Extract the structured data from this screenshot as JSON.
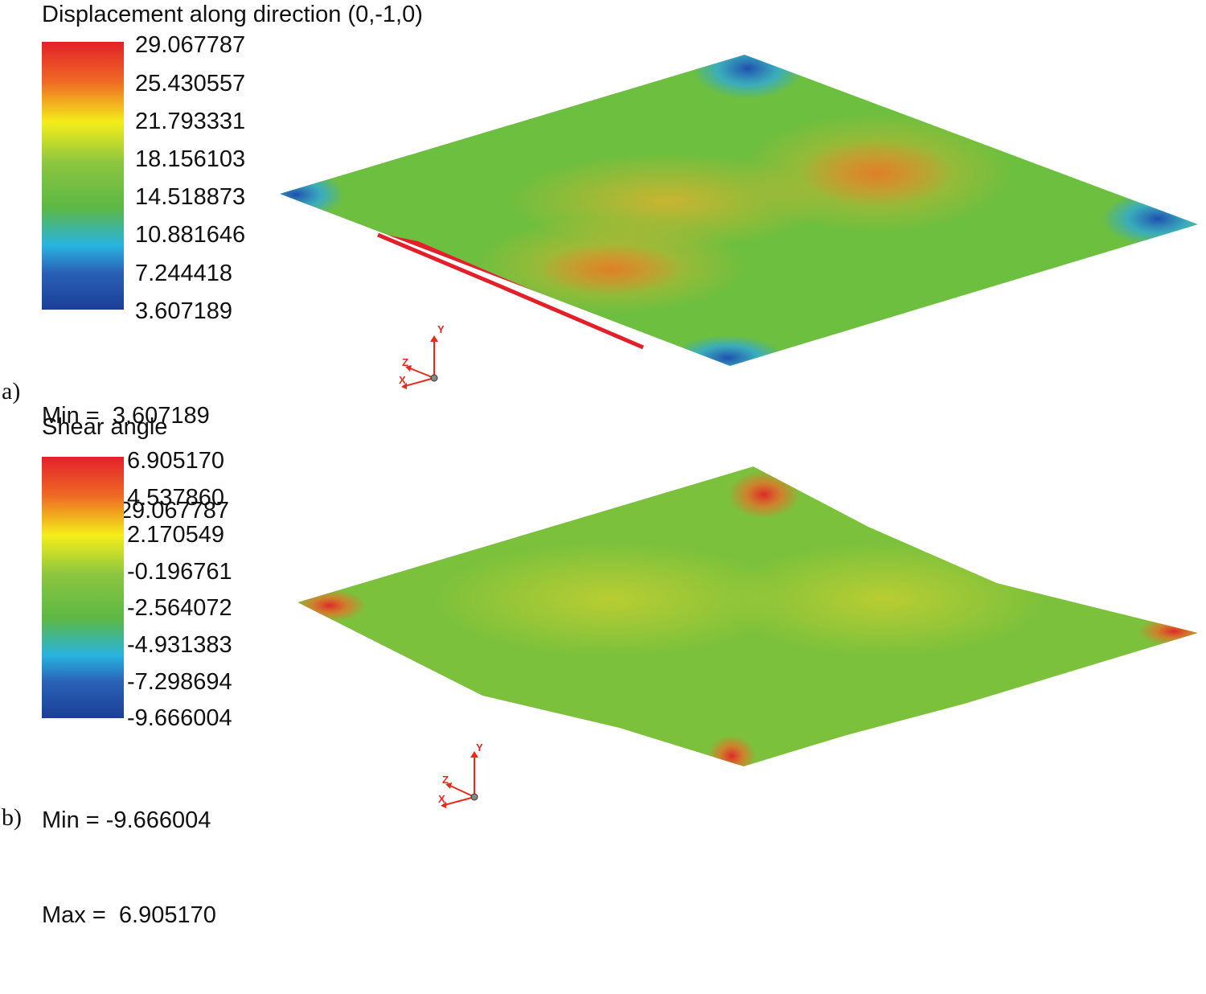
{
  "panel_a": {
    "label": "a)",
    "title": "Displacement along direction (0,-1,0)",
    "scale_values": [
      "29.067787",
      "25.430557",
      "21.793331",
      "18.156103",
      "14.518873",
      "10.881646",
      "7.244418",
      "3.607189"
    ],
    "min_text": "Min =  3.607189",
    "max_text": "Max =  29.067787",
    "axes": {
      "x": "X",
      "y": "Y",
      "z": "Z"
    }
  },
  "panel_b": {
    "label": "b)",
    "title": "Shear angle",
    "scale_values": [
      "6.905170",
      "4.537860",
      "2.170549",
      "-0.196761",
      "-2.564072",
      "-4.931383",
      "-7.298694",
      "-9.666004"
    ],
    "min_text": "Min = -9.666004",
    "max_text": "Max =  6.905170",
    "axes": {
      "x": "X",
      "y": "Y",
      "z": "Z"
    }
  },
  "colors": {
    "red": "#e3202a",
    "orange": "#ef6a24",
    "yellow": "#f4ee1a",
    "green": "#5cb845",
    "cyan": "#28b4e0",
    "blue": "#1b3e96",
    "axis": "#e8291c"
  }
}
